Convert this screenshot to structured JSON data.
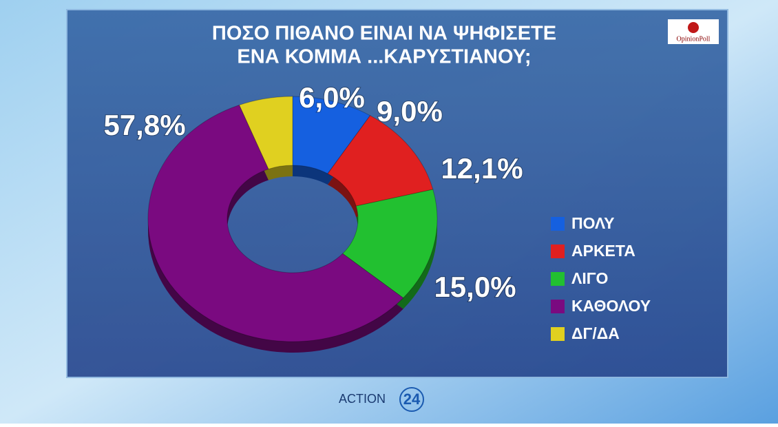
{
  "chart_data": {
    "type": "donut",
    "title": [
      "ΠΟΣΟ ΠΙΘΑΝΟ ΕΙΝΑΙ ΝΑ ΨΗΦΙΣΕΤΕ",
      "ΕΝΑ ΚΟΜΜΑ ...ΚΑΡΥΣΤΙΑΝΟΥ;"
    ],
    "categories": [
      "ΠΟΛΥ",
      "ΑΡΚΕΤΑ",
      "ΛΙΓΟ",
      "ΚΑΘΟΛΟΥ",
      "ΔΓ/ΔΑ"
    ],
    "values": [
      9.0,
      12.1,
      15.0,
      57.8,
      6.0
    ],
    "value_labels": [
      "9,0%",
      "12,1%",
      "15,0%",
      "57,8%",
      "6,0%"
    ],
    "colors": [
      "#1560e0",
      "#e02020",
      "#22c030",
      "#7a0a80",
      "#e0d020"
    ],
    "legend": "right"
  },
  "logo": "OpinionPoll",
  "channel": "ACTION",
  "channel_number": "24"
}
